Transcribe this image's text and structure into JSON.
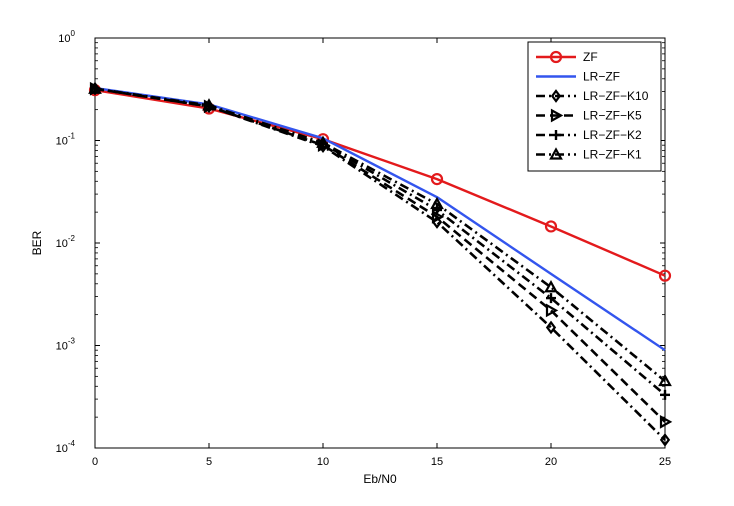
{
  "chart_data": {
    "type": "line",
    "xlabel": "Eb/N0",
    "ylabel": "BER",
    "y_scale": "log",
    "xlim": [
      0,
      25
    ],
    "ylim": [
      0.0001,
      1
    ],
    "x_ticks": [
      "0",
      "5",
      "10",
      "15",
      "20",
      "25"
    ],
    "y_ticks": [
      {
        "base": "10",
        "exp": "0"
      },
      {
        "base": "10",
        "exp": "-1"
      },
      {
        "base": "10",
        "exp": "-2"
      },
      {
        "base": "10",
        "exp": "-3"
      },
      {
        "base": "10",
        "exp": "-4"
      }
    ],
    "grid": false,
    "legend_position": "top-right",
    "x": [
      0,
      5,
      10,
      15,
      20,
      25
    ],
    "series": [
      {
        "name": "ZF",
        "color": "#e31a1c",
        "line": "solid",
        "marker": "circle",
        "values": [
          0.31,
          0.205,
          0.103,
          0.042,
          0.0145,
          0.0048
        ]
      },
      {
        "name": "LR−ZF",
        "color": "#3355ee",
        "line": "solid",
        "marker": "none",
        "values": [
          0.325,
          0.225,
          0.105,
          0.028,
          0.005,
          0.0009
        ]
      },
      {
        "name": "LR−ZF−K10",
        "color": "#000000",
        "line": "dashdot",
        "marker": "diamond",
        "values": [
          0.32,
          0.215,
          0.088,
          0.016,
          0.0015,
          0.00012
        ]
      },
      {
        "name": "LR−ZF−K5",
        "color": "#000000",
        "line": "dashed",
        "marker": "triangle-right",
        "values": [
          0.32,
          0.215,
          0.09,
          0.018,
          0.0022,
          0.00018
        ]
      },
      {
        "name": "LR−ZF−K2",
        "color": "#000000",
        "line": "dashdot",
        "marker": "plus",
        "values": [
          0.32,
          0.218,
          0.093,
          0.021,
          0.0029,
          0.00033
        ]
      },
      {
        "name": "LR−ZF−K1",
        "color": "#000000",
        "line": "dashdot",
        "marker": "triangle-up",
        "values": [
          0.32,
          0.22,
          0.095,
          0.024,
          0.0037,
          0.00045
        ]
      }
    ]
  }
}
